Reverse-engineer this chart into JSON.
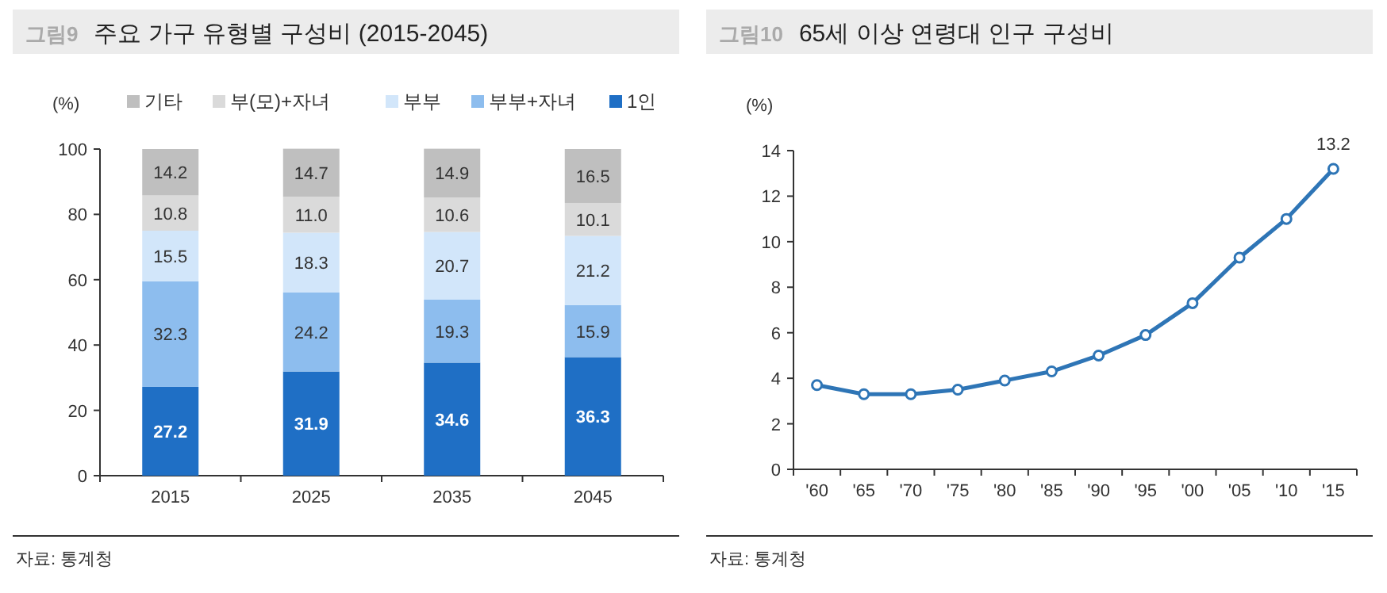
{
  "chart_data": [
    {
      "type": "bar",
      "stacked": true,
      "title": "주요 가구 유형별 구성비 (2015-2045)",
      "ylabel": "(%)",
      "categories": [
        "2015",
        "2025",
        "2035",
        "2045"
      ],
      "ylim": [
        0,
        100
      ],
      "yticks": [
        0,
        20,
        40,
        60,
        80,
        100
      ],
      "legend": "top",
      "data_labels": true,
      "grid": false,
      "series": [
        {
          "name": "1인",
          "color": "#1f6fc5",
          "values": [
            27.2,
            31.9,
            34.6,
            36.3
          ]
        },
        {
          "name": "부부+자녀",
          "color": "#8dbdee",
          "values": [
            32.3,
            24.2,
            19.3,
            15.9
          ]
        },
        {
          "name": "부부",
          "color": "#d2e6fa",
          "values": [
            15.5,
            18.3,
            20.7,
            21.2
          ]
        },
        {
          "name": "부(모)+자녀",
          "color": "#dadada",
          "values": [
            10.8,
            11.0,
            10.6,
            10.1
          ],
          "value_labels": [
            "10.8",
            "11.0",
            "10.6",
            "10.1"
          ]
        },
        {
          "name": "기타",
          "color": "#bfbfbf",
          "values": [
            14.2,
            14.7,
            14.9,
            16.5
          ]
        }
      ],
      "annotations": [
        "그림9",
        "자료: 통계청"
      ]
    },
    {
      "type": "line",
      "title": "65세 이상 연령대 인구 구성비",
      "ylabel": "(%)",
      "categories": [
        "'60",
        "'65",
        "'70",
        "'75",
        "'80",
        "'85",
        "'90",
        "'95",
        "'00",
        "'05",
        "'10",
        "'15"
      ],
      "ylim": [
        0,
        14
      ],
      "yticks": [
        0,
        2,
        4,
        6,
        8,
        10,
        12,
        14
      ],
      "marker": "circle",
      "line_style": "solid",
      "grid": false,
      "series": [
        {
          "color": "#2e75b6",
          "values": [
            3.7,
            3.3,
            3.3,
            3.5,
            3.9,
            4.3,
            5.0,
            5.9,
            7.3,
            9.3,
            11.0,
            13.2
          ],
          "value_labels": [
            null,
            null,
            null,
            null,
            null,
            null,
            null,
            null,
            null,
            null,
            null,
            "13.2"
          ]
        }
      ],
      "annotations": [
        "그림10",
        "자료: 통계청"
      ]
    }
  ]
}
